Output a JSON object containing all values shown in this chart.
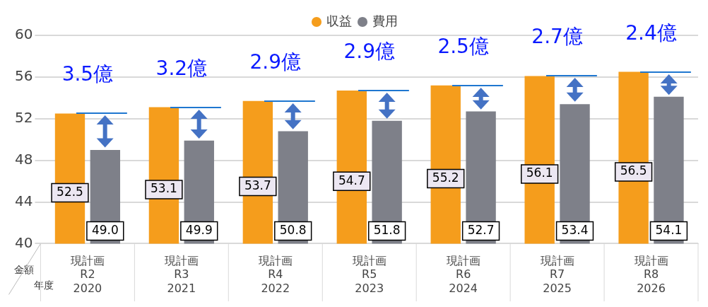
{
  "chart_data": {
    "type": "bar",
    "categories": [
      "現計画\nR2\n2020",
      "現計画\nR3\n2021",
      "現計画\nR4\n2022",
      "現計画\nR5\n2023",
      "現計画\nR6\n2024",
      "現計画\nR7\n2025",
      "現計画\nR8\n2026"
    ],
    "series": [
      {
        "name": "収益",
        "color": "#f59d1c",
        "values": [
          52.5,
          53.1,
          53.7,
          54.7,
          55.2,
          56.1,
          56.5
        ],
        "value_labels": [
          "52.5",
          "53.1",
          "53.7",
          "54.7",
          "55.2",
          "56.1",
          "56.5"
        ]
      },
      {
        "name": "費用",
        "color": "#7e8089",
        "values": [
          49.0,
          49.9,
          50.8,
          51.8,
          52.7,
          53.4,
          54.1
        ],
        "value_labels": [
          "49.0",
          "49.9",
          "50.8",
          "51.8",
          "52.7",
          "53.4",
          "54.1"
        ]
      }
    ],
    "ylabel": "金額",
    "xlabel": "年度",
    "ylim": [
      40,
      60
    ],
    "yticks": [
      40,
      44,
      48,
      52,
      56,
      60
    ],
    "grid": "y",
    "legend": "top",
    "annotations": [
      {
        "text": "3.5億",
        "x": "現計画\nR2\n2020",
        "y": 52.5
      },
      {
        "text": "3.2億",
        "x": "現計画\nR3\n2021",
        "y": 53.1
      },
      {
        "text": "2.9億",
        "x": "現計画\nR4\n2022",
        "y": 53.7
      },
      {
        "text": "2.9億",
        "x": "現計画\nR5\n2023",
        "y": 54.7
      },
      {
        "text": "2.5億",
        "x": "現計画\nR6\n2024",
        "y": 55.2
      },
      {
        "text": "2.7億",
        "x": "現計画\nR7\n2025",
        "y": 56.1
      },
      {
        "text": "2.4億",
        "x": "現計画\nR8\n2026",
        "y": 56.5
      }
    ]
  }
}
